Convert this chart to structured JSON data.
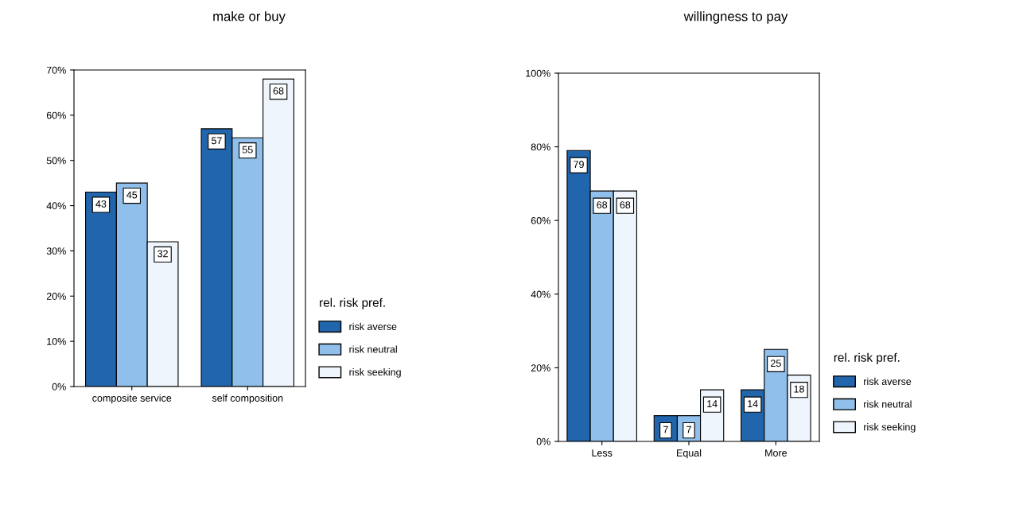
{
  "chart_data": [
    {
      "type": "bar",
      "title": "make or buy",
      "categories": [
        "composite service",
        "self composition"
      ],
      "series": [
        {
          "name": "risk averse",
          "color": "#2166ac",
          "values": [
            43,
            57
          ]
        },
        {
          "name": "risk neutral",
          "color": "#8fbfea",
          "values": [
            45,
            55
          ]
        },
        {
          "name": "risk seeking",
          "color": "#eef5fc",
          "values": [
            32,
            68
          ]
        }
      ],
      "ylim": [
        0,
        70
      ],
      "yticks": [
        {
          "value": 0,
          "label": "0%"
        },
        {
          "value": 10,
          "label": "10%"
        },
        {
          "value": 20,
          "label": "20%"
        },
        {
          "value": 30,
          "label": "30%"
        },
        {
          "value": 40,
          "label": "40%"
        },
        {
          "value": 50,
          "label": "50%"
        },
        {
          "value": 60,
          "label": "60%"
        },
        {
          "value": 70,
          "label": "70%"
        }
      ],
      "data_labels": true,
      "legend": "right",
      "legend_title": "rel. risk pref.",
      "grid": false
    },
    {
      "type": "bar",
      "title": "willingness to pay",
      "categories": [
        "Less",
        "Equal",
        "More"
      ],
      "series": [
        {
          "name": "risk averse",
          "color": "#2166ac",
          "values": [
            79,
            7,
            14
          ]
        },
        {
          "name": "risk neutral",
          "color": "#8fbfea",
          "values": [
            68,
            7,
            25
          ]
        },
        {
          "name": "risk seeking",
          "color": "#eef5fc",
          "values": [
            68,
            14,
            18
          ]
        }
      ],
      "ylim": [
        0,
        100
      ],
      "yticks": [
        {
          "value": 0,
          "label": "0%"
        },
        {
          "value": 20,
          "label": "20%"
        },
        {
          "value": 40,
          "label": "40%"
        },
        {
          "value": 60,
          "label": "60%"
        },
        {
          "value": 80,
          "label": "80%"
        },
        {
          "value": 100,
          "label": "100%"
        }
      ],
      "data_labels": true,
      "legend": "right",
      "legend_title": "rel. risk pref.",
      "grid": false
    }
  ]
}
